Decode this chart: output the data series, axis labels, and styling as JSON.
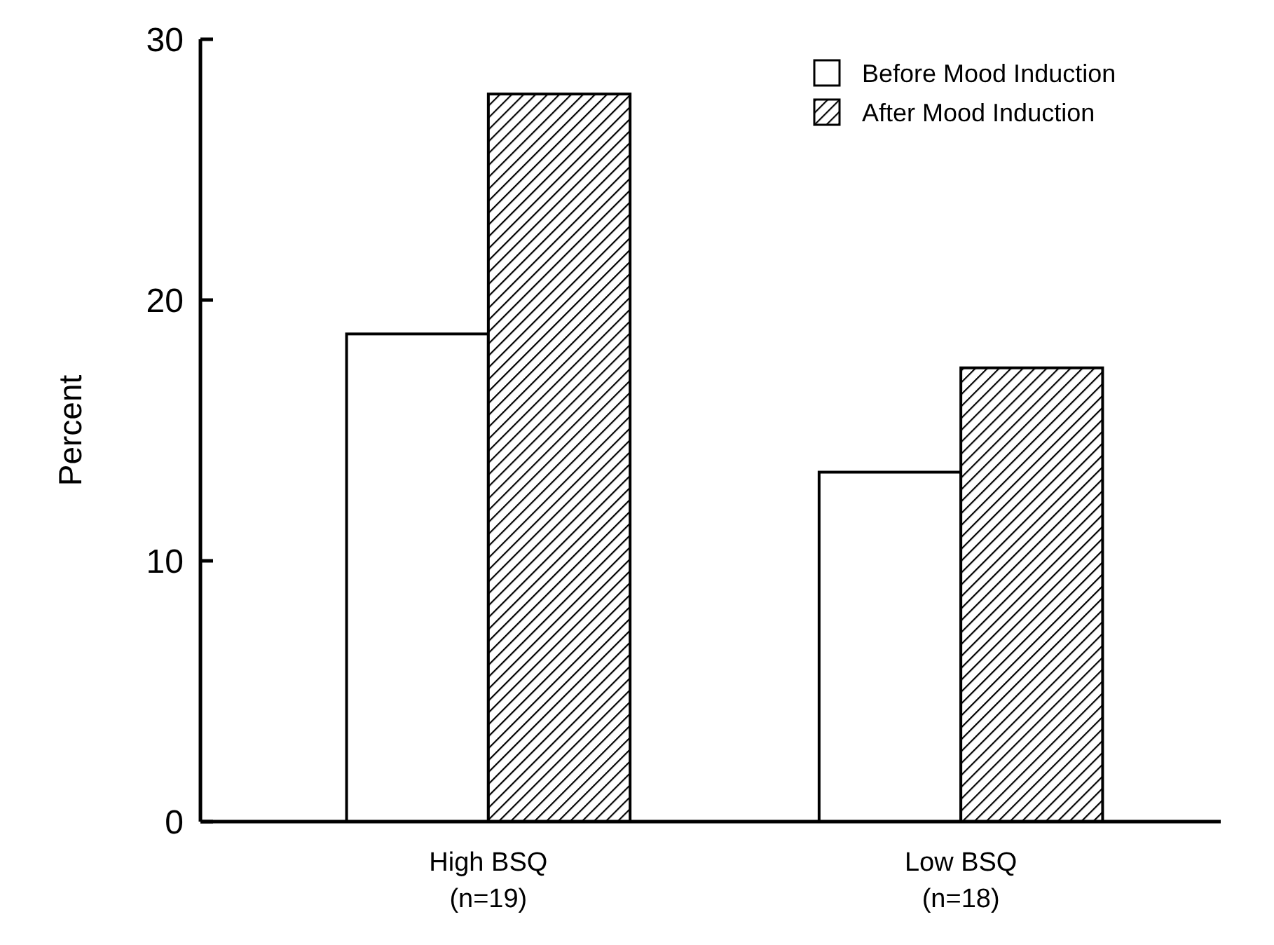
{
  "chart_data": {
    "type": "bar",
    "ylabel": "Percent",
    "categories": [
      "High BSQ\n(n=19)",
      "Low BSQ\n(n=18)"
    ],
    "series": [
      {
        "name": "Before Mood Induction",
        "color": "#ffffff",
        "values": [
          18.7,
          13.4
        ]
      },
      {
        "name": "After Mood Induction",
        "color": "#000000",
        "values": [
          27.9,
          17.4
        ]
      }
    ],
    "ylim": [
      0,
      30
    ],
    "yticks": [
      0,
      10,
      20,
      30
    ],
    "grid": false,
    "legend": "top right"
  }
}
